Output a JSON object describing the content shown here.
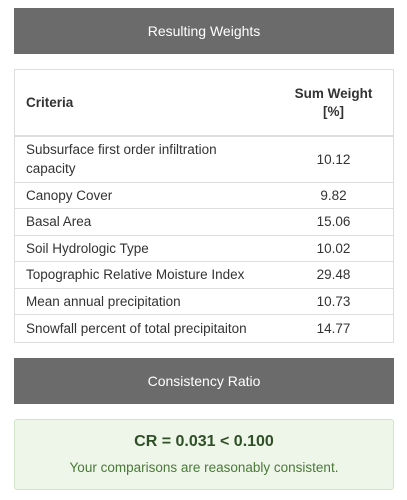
{
  "weights_panel": {
    "title": "Resulting Weights"
  },
  "table": {
    "headers": {
      "criteria": "Criteria",
      "sum_weight": "Sum Weight [%]"
    },
    "rows": [
      {
        "criteria": "Subsurface first order infiltration capacity",
        "weight": "10.12"
      },
      {
        "criteria": "Canopy Cover",
        "weight": "9.82"
      },
      {
        "criteria": "Basal Area",
        "weight": "15.06"
      },
      {
        "criteria": "Soil Hydrologic Type",
        "weight": "10.02"
      },
      {
        "criteria": "Topographic Relative Moisture Index",
        "weight": "29.48"
      },
      {
        "criteria": "Mean annual precipitation",
        "weight": "10.73"
      },
      {
        "criteria": "Snowfall percent of total precipitaiton",
        "weight": "14.77"
      }
    ]
  },
  "consistency_panel": {
    "title": "Consistency Ratio",
    "cr_text": "CR = 0.031 < 0.100",
    "message": "Your comparisons are reasonably consistent."
  },
  "colors": {
    "panel_header_bg": "#6b6b6b",
    "success_bg": "#eef5e9",
    "success_text": "#4a7a38"
  }
}
